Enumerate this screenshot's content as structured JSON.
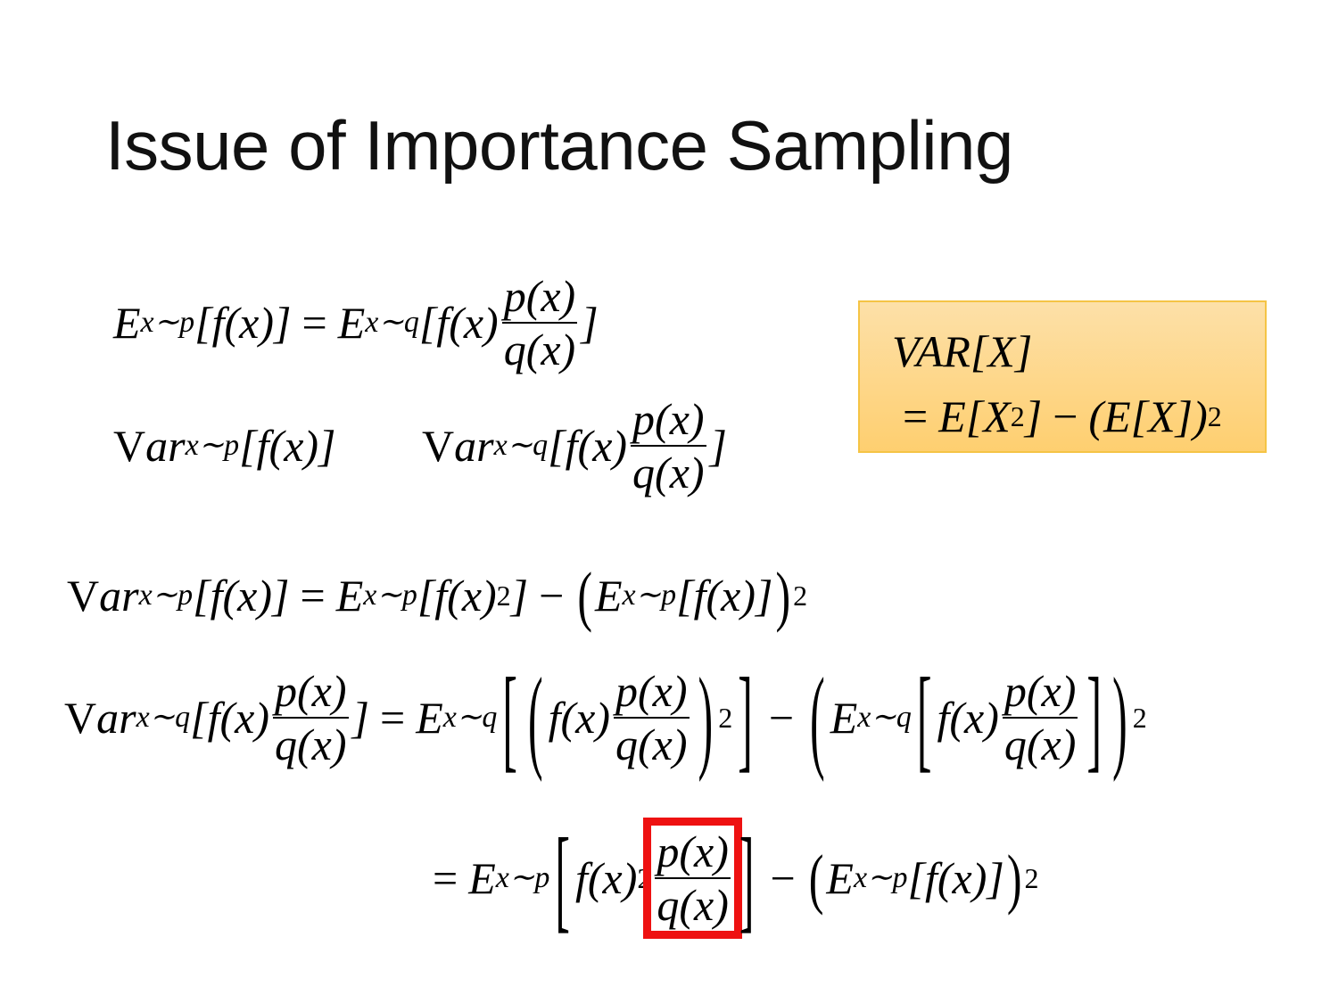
{
  "slide": {
    "title": "Issue of Importance Sampling",
    "colors": {
      "note_bg": "#fed783",
      "note_border": "#f5c445",
      "highlight": "#ee1111"
    },
    "equations": [
      {
        "id": "eq-importance",
        "tokens": [
          {
            "t": "E"
          },
          {
            "sub": "x∼p"
          },
          {
            "t": "["
          },
          {
            "t": "f"
          },
          {
            "t": "(x)"
          },
          {
            "t": "]"
          },
          {
            "op": "="
          },
          {
            "t": "E"
          },
          {
            "sub": "x∼q"
          },
          {
            "t": "["
          },
          {
            "t": "f"
          },
          {
            "t": "(x)"
          },
          {
            "frac": [
              "p(x)",
              "q(x)"
            ]
          },
          {
            "t": "]"
          }
        ]
      },
      {
        "id": "eq-var-p",
        "tokens": [
          {
            "r": "V"
          },
          {
            "t": "ar"
          },
          {
            "sub": "x∼p"
          },
          {
            "t": "["
          },
          {
            "t": "f"
          },
          {
            "t": "(x)"
          },
          {
            "t": "]"
          }
        ]
      },
      {
        "id": "eq-var-q",
        "tokens": [
          {
            "r": "V"
          },
          {
            "t": "ar"
          },
          {
            "sub": "x∼q"
          },
          {
            "t": "["
          },
          {
            "t": "f"
          },
          {
            "t": "(x)"
          },
          {
            "frac": [
              "p(x)",
              "q(x)"
            ]
          },
          {
            "t": "]"
          }
        ]
      },
      {
        "id": "eq-var-p-expand",
        "tokens": [
          {
            "r": "V"
          },
          {
            "t": "ar"
          },
          {
            "sub": "x∼p"
          },
          {
            "t": "[f(x)]"
          },
          {
            "op": "="
          },
          {
            "t": "E"
          },
          {
            "sub": "x∼p"
          },
          {
            "t": "[f(x)"
          },
          {
            "sup": "2"
          },
          {
            "t": "]"
          },
          {
            "op": "−"
          },
          {
            "mid": "("
          },
          {
            "t": "E"
          },
          {
            "sub": "x∼p"
          },
          {
            "t": "[f(x)]"
          },
          {
            "mid": ")"
          },
          {
            "sup": "2"
          }
        ]
      },
      {
        "id": "eq-var-q-expand",
        "tokens": [
          {
            "r": "V"
          },
          {
            "t": "ar"
          },
          {
            "sub": "x∼q"
          },
          {
            "t": "[f(x)"
          },
          {
            "frac": [
              "p(x)",
              "q(x)"
            ]
          },
          {
            "t": "]"
          },
          {
            "op": "="
          },
          {
            "t": "E"
          },
          {
            "sub": "x∼q"
          },
          {
            "big": "["
          },
          {
            "big": "("
          },
          {
            "t": "f(x)"
          },
          {
            "frac": [
              "p(x)",
              "q(x)"
            ]
          },
          {
            "big": ")"
          },
          {
            "sup": "2"
          },
          {
            "big": "]"
          },
          {
            "op": "−"
          },
          {
            "big": "("
          },
          {
            "t": "E"
          },
          {
            "sub": "x∼q"
          },
          {
            "big": "["
          },
          {
            "t": "f(x)"
          },
          {
            "frac": [
              "p(x)",
              "q(x)"
            ]
          },
          {
            "big": "]"
          },
          {
            "big": ")"
          },
          {
            "sup": "2"
          }
        ]
      },
      {
        "id": "eq-var-q-result",
        "tokens": [
          {
            "op": "="
          },
          {
            "t": "E"
          },
          {
            "sub": "x∼p"
          },
          {
            "big": "["
          },
          {
            "t": "f(x)"
          },
          {
            "sup": "2"
          },
          {
            "frac": [
              "p(x)",
              "q(x)"
            ],
            "boxed": true
          },
          {
            "big": "]"
          },
          {
            "op": "−"
          },
          {
            "mid": "("
          },
          {
            "t": "E"
          },
          {
            "sub": "x∼p"
          },
          {
            "t": "[f(x)]"
          },
          {
            "mid": ")"
          },
          {
            "sup": "2"
          }
        ]
      }
    ],
    "note": {
      "line1": [
        {
          "t": "VAR[X]"
        }
      ],
      "line2": [
        {
          "op": "="
        },
        {
          "t": "E[X"
        },
        {
          "sup": "2"
        },
        {
          "t": "]"
        },
        {
          "op": "−"
        },
        {
          "t": "(E[X])"
        },
        {
          "sup": "2"
        }
      ]
    }
  }
}
